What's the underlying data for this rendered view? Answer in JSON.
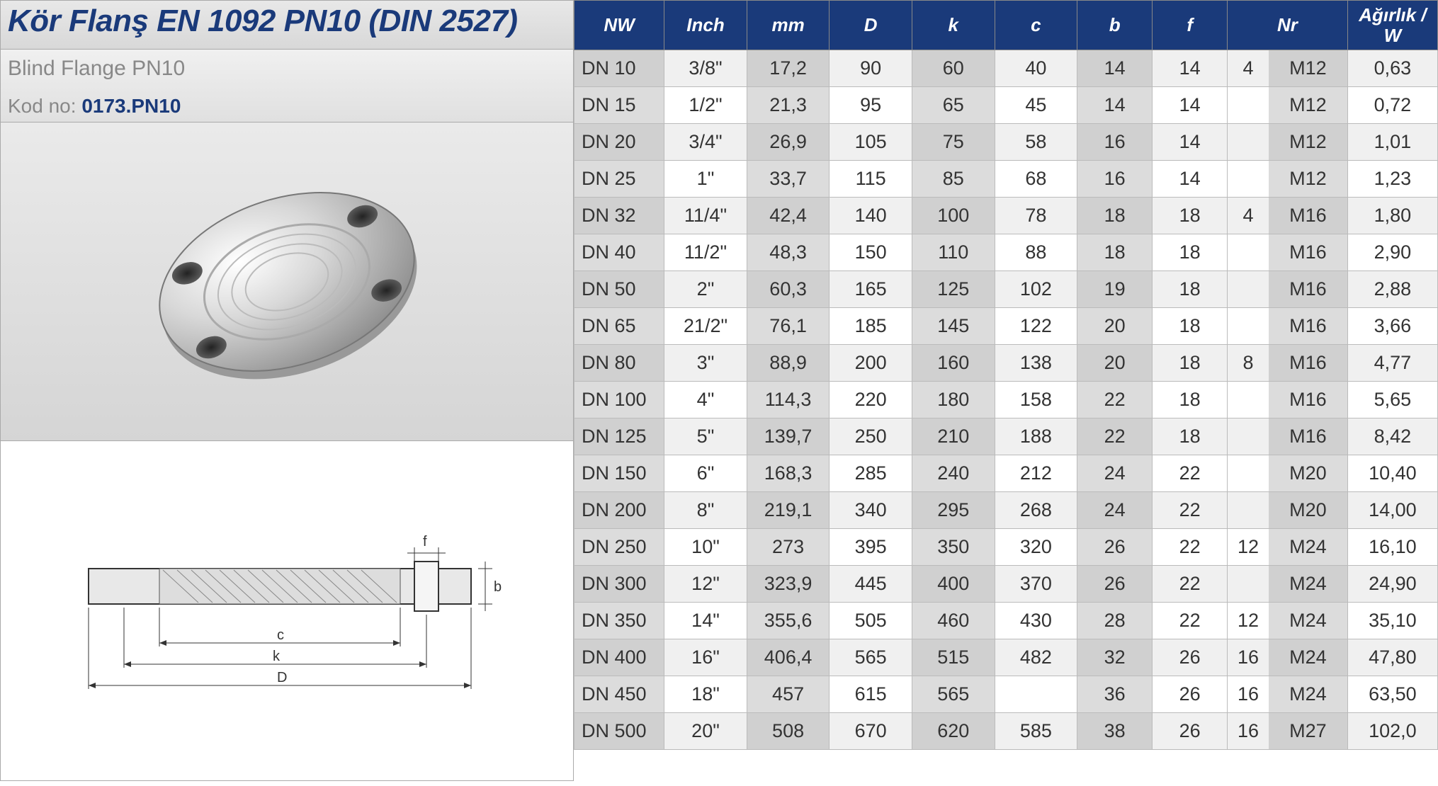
{
  "header": {
    "title": "Kör Flanş EN 1092 PN10 (DIN 2527)",
    "subtitle": "Blind Flange PN10",
    "kod_label": "Kod no: ",
    "kod_value": "0173.PN10"
  },
  "style": {
    "title_color": "#1a3a7a",
    "header_bg": "#1a3a7a",
    "header_text": "#ffffff",
    "shade_bg": "#dcdcdc",
    "row_even_bg": "#f0f0f0",
    "row_odd_bg": "#ffffff",
    "border_color": "#bbbbbb",
    "title_fontsize": 44,
    "th_fontsize": 26,
    "td_fontsize": 27
  },
  "table": {
    "columns": [
      "NW",
      "Inch",
      "mm",
      "D",
      "k",
      "c",
      "b",
      "f",
      "Nr_count",
      "Nr",
      "Ağırlık / W"
    ],
    "column_headers": {
      "nw": "NW",
      "inch": "Inch",
      "mm": "mm",
      "D": "D",
      "k": "k",
      "c": "c",
      "b": "b",
      "f": "f",
      "nr": "Nr",
      "weight": "Ağırlık / W"
    },
    "shaded_columns": [
      "mm",
      "k",
      "b",
      "Nr",
      "NW"
    ],
    "rows": [
      {
        "nw": "DN 10",
        "inch": "3/8\"",
        "mm": "17,2",
        "D": "90",
        "k": "60",
        "c": "40",
        "b": "14",
        "f": "14",
        "nrc": "4",
        "nr": "M12",
        "w": "0,63"
      },
      {
        "nw": "DN 15",
        "inch": "1/2\"",
        "mm": "21,3",
        "D": "95",
        "k": "65",
        "c": "45",
        "b": "14",
        "f": "14",
        "nrc": "",
        "nr": "M12",
        "w": "0,72"
      },
      {
        "nw": "DN 20",
        "inch": "3/4\"",
        "mm": "26,9",
        "D": "105",
        "k": "75",
        "c": "58",
        "b": "16",
        "f": "14",
        "nrc": "",
        "nr": "M12",
        "w": "1,01"
      },
      {
        "nw": "DN 25",
        "inch": "1\"",
        "mm": "33,7",
        "D": "115",
        "k": "85",
        "c": "68",
        "b": "16",
        "f": "14",
        "nrc": "",
        "nr": "M12",
        "w": "1,23"
      },
      {
        "nw": "DN 32",
        "inch": "11/4\"",
        "mm": "42,4",
        "D": "140",
        "k": "100",
        "c": "78",
        "b": "18",
        "f": "18",
        "nrc": "4",
        "nr": "M16",
        "w": "1,80"
      },
      {
        "nw": "DN 40",
        "inch": "11/2\"",
        "mm": "48,3",
        "D": "150",
        "k": "110",
        "c": "88",
        "b": "18",
        "f": "18",
        "nrc": "",
        "nr": "M16",
        "w": "2,90"
      },
      {
        "nw": "DN 50",
        "inch": "2\"",
        "mm": "60,3",
        "D": "165",
        "k": "125",
        "c": "102",
        "b": "19",
        "f": "18",
        "nrc": "",
        "nr": "M16",
        "w": "2,88"
      },
      {
        "nw": "DN 65",
        "inch": "21/2\"",
        "mm": "76,1",
        "D": "185",
        "k": "145",
        "c": "122",
        "b": "20",
        "f": "18",
        "nrc": "",
        "nr": "M16",
        "w": "3,66"
      },
      {
        "nw": "DN 80",
        "inch": "3\"",
        "mm": "88,9",
        "D": "200",
        "k": "160",
        "c": "138",
        "b": "20",
        "f": "18",
        "nrc": "8",
        "nr": "M16",
        "w": "4,77"
      },
      {
        "nw": "DN 100",
        "inch": "4\"",
        "mm": "114,3",
        "D": "220",
        "k": "180",
        "c": "158",
        "b": "22",
        "f": "18",
        "nrc": "",
        "nr": "M16",
        "w": "5,65"
      },
      {
        "nw": "DN 125",
        "inch": "5\"",
        "mm": "139,7",
        "D": "250",
        "k": "210",
        "c": "188",
        "b": "22",
        "f": "18",
        "nrc": "",
        "nr": "M16",
        "w": "8,42"
      },
      {
        "nw": "DN 150",
        "inch": "6\"",
        "mm": "168,3",
        "D": "285",
        "k": "240",
        "c": "212",
        "b": "24",
        "f": "22",
        "nrc": "",
        "nr": "M20",
        "w": "10,40"
      },
      {
        "nw": "DN 200",
        "inch": "8\"",
        "mm": "219,1",
        "D": "340",
        "k": "295",
        "c": "268",
        "b": "24",
        "f": "22",
        "nrc": "",
        "nr": "M20",
        "w": "14,00"
      },
      {
        "nw": "DN 250",
        "inch": "10\"",
        "mm": "273",
        "D": "395",
        "k": "350",
        "c": "320",
        "b": "26",
        "f": "22",
        "nrc": "12",
        "nr": "M24",
        "w": "16,10"
      },
      {
        "nw": "DN 300",
        "inch": "12\"",
        "mm": "323,9",
        "D": "445",
        "k": "400",
        "c": "370",
        "b": "26",
        "f": "22",
        "nrc": "",
        "nr": "M24",
        "w": "24,90"
      },
      {
        "nw": "DN 350",
        "inch": "14\"",
        "mm": "355,6",
        "D": "505",
        "k": "460",
        "c": "430",
        "b": "28",
        "f": "22",
        "nrc": "12",
        "nr": "M24",
        "w": "35,10"
      },
      {
        "nw": "DN 400",
        "inch": "16\"",
        "mm": "406,4",
        "D": "565",
        "k": "515",
        "c": "482",
        "b": "32",
        "f": "26",
        "nrc": "16",
        "nr": "M24",
        "w": "47,80"
      },
      {
        "nw": "DN 450",
        "inch": "18\"",
        "mm": "457",
        "D": "615",
        "k": "565",
        "c": "",
        "b": "36",
        "f": "26",
        "nrc": "16",
        "nr": "M24",
        "w": "63,50"
      },
      {
        "nw": "DN 500",
        "inch": "20\"",
        "mm": "508",
        "D": "670",
        "k": "620",
        "c": "585",
        "b": "38",
        "f": "26",
        "nrc": "16",
        "nr": "M27",
        "w": "102,0"
      }
    ]
  },
  "diagram": {
    "labels": {
      "f": "f",
      "b": "b",
      "c": "c",
      "k": "k",
      "D": "D"
    }
  }
}
